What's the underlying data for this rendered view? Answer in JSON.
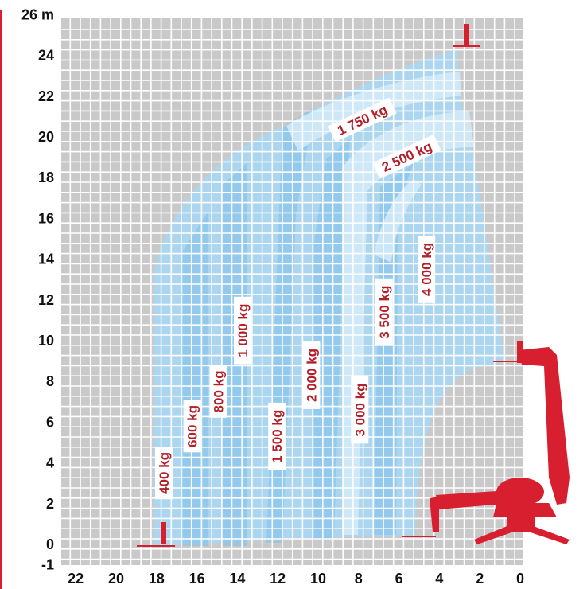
{
  "chart_data": {
    "type": "load-chart",
    "x_unit": "m",
    "x_axis_ticks": [
      "22",
      "20",
      "18",
      "16",
      "14",
      "12",
      "10",
      "8",
      "6",
      "4",
      "2",
      "0"
    ],
    "y_unit": "m",
    "y_axis_ticks": [
      "-1",
      "0",
      "2",
      "4",
      "6",
      "8",
      "10",
      "12",
      "14",
      "16",
      "18",
      "20",
      "22",
      "24",
      "26 m"
    ],
    "capacity_zones": [
      {
        "label": "400 kg",
        "x": 17.6,
        "y": 3.5,
        "orientation": "vertical"
      },
      {
        "label": "600 kg",
        "x": 16.2,
        "y": 5.8,
        "orientation": "vertical"
      },
      {
        "label": "800 kg",
        "x": 14.9,
        "y": 7.5,
        "orientation": "vertical"
      },
      {
        "label": "1 000 kg",
        "x": 13.7,
        "y": 10.5,
        "orientation": "vertical"
      },
      {
        "label": "1 500 kg",
        "x": 12.0,
        "y": 5.3,
        "orientation": "vertical"
      },
      {
        "label": "2 000 kg",
        "x": 10.3,
        "y": 8.3,
        "orientation": "vertical"
      },
      {
        "label": "3 000 kg",
        "x": 7.9,
        "y": 6.6,
        "orientation": "vertical"
      },
      {
        "label": "3 500 kg",
        "x": 6.7,
        "y": 11.4,
        "orientation": "vertical"
      },
      {
        "label": "4 000 kg",
        "x": 4.6,
        "y": 13.5,
        "orientation": "vertical"
      },
      {
        "label": "1 750 kg",
        "x": 7.8,
        "y": 20.8,
        "orientation": "diagonal"
      },
      {
        "label": "2 500 kg",
        "x": 5.6,
        "y": 19.0,
        "orientation": "diagonal"
      }
    ],
    "grid": true,
    "colors": {
      "envelope": "#a9d7f2",
      "zone_dark": "#7fc0ea",
      "zone_light": "#d3ebf9",
      "machine": "#d71f30",
      "label_text": "#b3202a",
      "grid": "#ffffff"
    }
  }
}
